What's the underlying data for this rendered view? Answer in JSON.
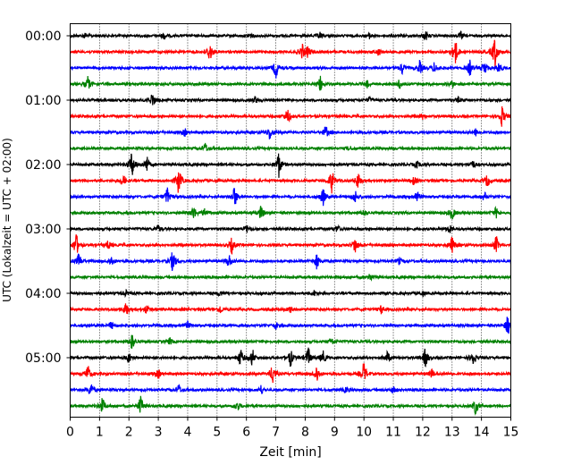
{
  "chart_data": {
    "type": "line",
    "xlabel": "Zeit  [min]",
    "ylabel": "UTC (Lokalzeit = UTC + 02:00)",
    "xlim": [
      0,
      15
    ],
    "x_ticks": [
      "0",
      "1",
      "2",
      "3",
      "4",
      "5",
      "6",
      "7",
      "8",
      "9",
      "10",
      "11",
      "12",
      "13",
      "14",
      "15"
    ],
    "y_ticks": [
      "00:00",
      "01:00",
      "02:00",
      "03:00",
      "04:00",
      "05:00"
    ],
    "grid": "vertical dotted",
    "row_colors": [
      "#000000",
      "#ff0000",
      "#0000ff",
      "#008000"
    ],
    "series": [
      {
        "start": "00:00",
        "color": "black",
        "events": [
          [
            0.5,
            0.3
          ],
          [
            3.2,
            0.35
          ],
          [
            6.1,
            0.35
          ],
          [
            8.5,
            0.4
          ],
          [
            10.2,
            0.3
          ],
          [
            12.1,
            0.5
          ],
          [
            13.3,
            0.4
          ]
        ]
      },
      {
        "start": "00:15",
        "color": "red",
        "events": [
          [
            4.75,
            1.2
          ],
          [
            7.9,
            0.8
          ],
          [
            8.1,
            0.6
          ],
          [
            10.5,
            0.4
          ],
          [
            13.1,
            1.8
          ],
          [
            14.45,
            2.0
          ]
        ]
      },
      {
        "start": "00:30",
        "color": "blue",
        "events": [
          [
            7.0,
            1.2
          ],
          [
            11.3,
            0.7
          ],
          [
            11.9,
            0.8
          ],
          [
            12.4,
            0.6
          ],
          [
            13.6,
            0.9
          ],
          [
            14.1,
            1.0
          ],
          [
            14.6,
            0.7
          ]
        ]
      },
      {
        "start": "00:45",
        "color": "green",
        "events": [
          [
            0.6,
            0.9
          ],
          [
            8.5,
            1.0
          ],
          [
            10.1,
            0.4
          ],
          [
            11.2,
            0.5
          ],
          [
            13.0,
            0.4
          ]
        ]
      },
      {
        "start": "01:00",
        "color": "black",
        "events": [
          [
            2.8,
            0.9
          ],
          [
            6.3,
            0.4
          ],
          [
            10.2,
            0.3
          ],
          [
            13.2,
            0.3
          ]
        ]
      },
      {
        "start": "01:15",
        "color": "red",
        "events": [
          [
            7.4,
            1.0
          ],
          [
            12.0,
            0.3
          ],
          [
            14.7,
            1.2
          ]
        ]
      },
      {
        "start": "01:30",
        "color": "blue",
        "events": [
          [
            3.9,
            0.4
          ],
          [
            6.8,
            0.9
          ],
          [
            8.7,
            0.7
          ],
          [
            13.8,
            0.4
          ]
        ]
      },
      {
        "start": "01:45",
        "color": "green",
        "events": [
          [
            4.6,
            0.6
          ],
          [
            9.5,
            0.3
          ]
        ]
      },
      {
        "start": "02:00",
        "color": "black",
        "events": [
          [
            2.1,
            1.6
          ],
          [
            2.6,
            1.0
          ],
          [
            7.1,
            1.5
          ],
          [
            11.8,
            0.4
          ],
          [
            13.7,
            0.5
          ]
        ]
      },
      {
        "start": "02:15",
        "color": "red",
        "events": [
          [
            1.8,
            0.7
          ],
          [
            3.7,
            1.6
          ],
          [
            8.9,
            1.4
          ],
          [
            9.8,
            1.0
          ],
          [
            11.7,
            0.5
          ],
          [
            14.2,
            0.7
          ]
        ]
      },
      {
        "start": "02:30",
        "color": "blue",
        "events": [
          [
            3.3,
            1.0
          ],
          [
            5.6,
            1.2
          ],
          [
            8.6,
            1.1
          ],
          [
            9.7,
            0.7
          ],
          [
            11.8,
            0.7
          ],
          [
            14.1,
            0.5
          ]
        ]
      },
      {
        "start": "02:45",
        "color": "green",
        "events": [
          [
            4.2,
            0.8
          ],
          [
            4.6,
            0.6
          ],
          [
            6.5,
            0.8
          ],
          [
            10.0,
            0.4
          ],
          [
            13.0,
            0.8
          ],
          [
            14.5,
            0.6
          ]
        ]
      },
      {
        "start": "03:00",
        "color": "black",
        "events": [
          [
            3.0,
            0.4
          ],
          [
            6.0,
            0.5
          ],
          [
            9.1,
            0.4
          ],
          [
            12.9,
            0.5
          ]
        ]
      },
      {
        "start": "03:15",
        "color": "red",
        "events": [
          [
            0.2,
            1.4
          ],
          [
            1.3,
            0.5
          ],
          [
            5.5,
            0.9
          ],
          [
            9.7,
            1.0
          ],
          [
            13.0,
            0.9
          ],
          [
            14.5,
            1.0
          ]
        ]
      },
      {
        "start": "03:30",
        "color": "blue",
        "events": [
          [
            0.3,
            0.9
          ],
          [
            1.4,
            0.6
          ],
          [
            3.5,
            1.4
          ],
          [
            5.4,
            0.8
          ],
          [
            8.4,
            0.9
          ],
          [
            11.2,
            0.4
          ]
        ]
      },
      {
        "start": "03:45",
        "color": "green",
        "events": [
          [
            10.2,
            0.5
          ]
        ]
      },
      {
        "start": "04:00",
        "color": "black",
        "events": [
          [
            1.9,
            0.3
          ],
          [
            5.1,
            0.3
          ],
          [
            8.3,
            0.3
          ],
          [
            12.0,
            0.3
          ]
        ]
      },
      {
        "start": "04:15",
        "color": "red",
        "events": [
          [
            1.9,
            0.8
          ],
          [
            2.6,
            0.5
          ],
          [
            5.1,
            0.5
          ],
          [
            7.5,
            0.4
          ],
          [
            10.6,
            0.5
          ]
        ]
      },
      {
        "start": "04:30",
        "color": "blue",
        "events": [
          [
            1.4,
            0.4
          ],
          [
            4.0,
            0.4
          ],
          [
            7.0,
            0.4
          ],
          [
            14.9,
            1.2
          ]
        ]
      },
      {
        "start": "04:45",
        "color": "green",
        "events": [
          [
            2.1,
            1.0
          ],
          [
            3.4,
            0.4
          ],
          [
            8.9,
            0.4
          ]
        ]
      },
      {
        "start": "05:00",
        "color": "black",
        "events": [
          [
            2.0,
            0.6
          ],
          [
            5.8,
            1.0
          ],
          [
            6.2,
            1.0
          ],
          [
            7.5,
            1.0
          ],
          [
            8.1,
            1.2
          ],
          [
            8.6,
            0.8
          ],
          [
            10.8,
            0.7
          ],
          [
            12.1,
            1.2
          ],
          [
            13.7,
            0.9
          ]
        ]
      },
      {
        "start": "05:15",
        "color": "red",
        "events": [
          [
            0.6,
            1.0
          ],
          [
            3.0,
            0.5
          ],
          [
            6.9,
            1.3
          ],
          [
            8.4,
            1.0
          ],
          [
            10.0,
            1.3
          ],
          [
            12.3,
            0.5
          ]
        ]
      },
      {
        "start": "05:30",
        "color": "blue",
        "events": [
          [
            0.7,
            1.0
          ],
          [
            3.7,
            0.6
          ],
          [
            6.5,
            0.5
          ],
          [
            9.4,
            0.4
          ],
          [
            11.0,
            0.4
          ]
        ]
      },
      {
        "start": "05:45",
        "color": "green",
        "events": [
          [
            1.1,
            0.9
          ],
          [
            2.4,
            1.2
          ],
          [
            5.7,
            0.5
          ],
          [
            13.8,
            1.0
          ]
        ]
      }
    ]
  }
}
